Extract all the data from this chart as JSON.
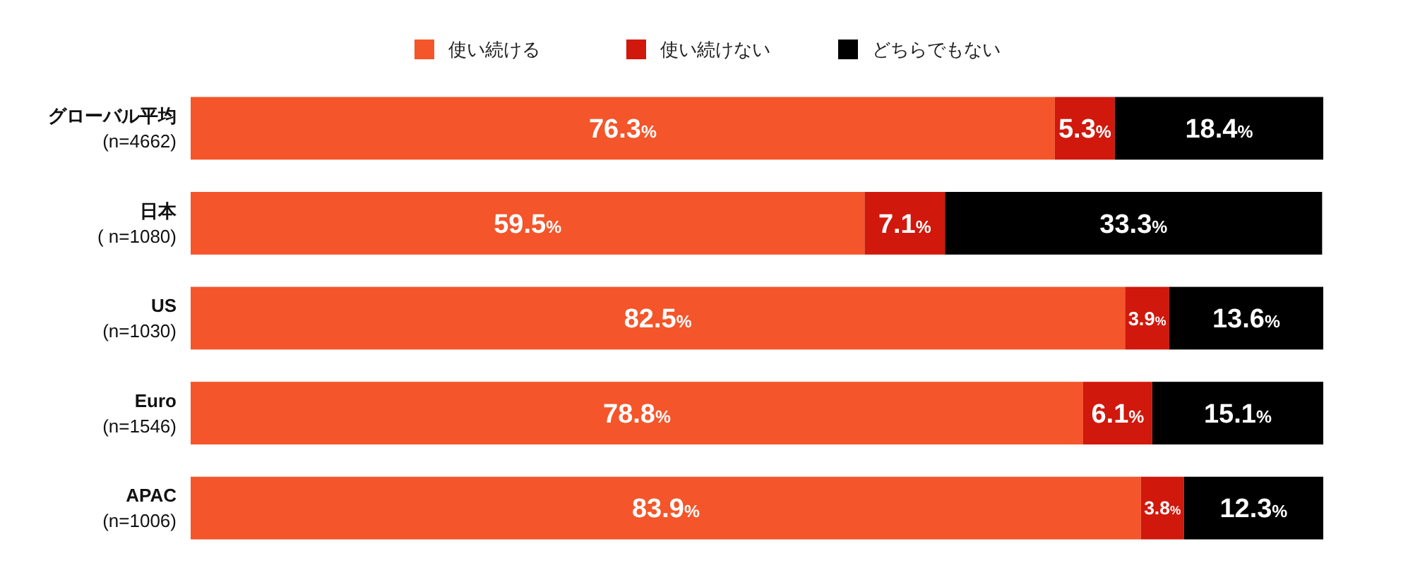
{
  "chart_data": {
    "type": "bar",
    "orientation": "horizontal",
    "stacked": true,
    "legend": "top",
    "xlim": [
      0,
      100
    ],
    "tick_labels": "y",
    "categories": [
      "グローバル平均\n(n=4662)",
      "日本\n( n=1080)",
      "US\n(n=1030)",
      "Euro\n(n=1546)",
      "APAC\n(n=1006)"
    ],
    "series": [
      {
        "name": "使い続ける",
        "color": "#f4552a",
        "values": [
          76.3,
          59.5,
          82.5,
          78.8,
          83.9
        ],
        "value_labels": [
          "76.3%",
          "59.5%",
          "82.5%",
          "78.8%",
          "83.9%"
        ]
      },
      {
        "name": "使い続けない",
        "color": "#d0180c",
        "values": [
          5.3,
          7.1,
          3.9,
          6.1,
          3.8
        ],
        "value_labels": [
          "5.3%",
          "7.1%",
          "3.9%",
          "6.1%",
          "3.8%"
        ]
      },
      {
        "name": "どちらでもない",
        "color": "#000000",
        "values": [
          18.4,
          33.3,
          13.6,
          15.1,
          12.3
        ],
        "value_labels": [
          "18.4%",
          "33.3%",
          "13.6%",
          "15.1%",
          "12.3%"
        ]
      }
    ]
  }
}
